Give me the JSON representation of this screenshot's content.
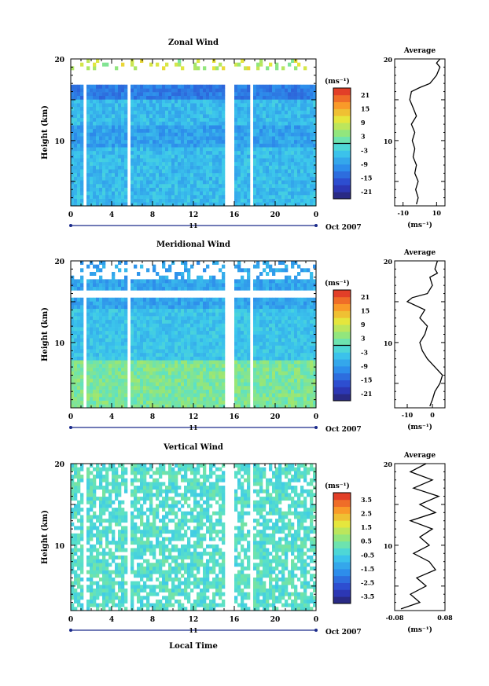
{
  "figure": {
    "x_ticks": [
      "0",
      "4",
      "8",
      "12",
      "16",
      "20",
      "0"
    ],
    "day_label": "11",
    "month_label": "Oct 2007",
    "x_axis_label": "Local Time",
    "y_axis_label": "Height (km)",
    "y_ticks": [
      "10",
      "20"
    ],
    "unit_label": "(ms⁻¹)",
    "average_title": "Average"
  },
  "chart_data": [
    {
      "type": "heatmap",
      "title": "Zonal Wind",
      "xlabel": "",
      "ylabel": "Height (km)",
      "xlim": [
        0,
        24
      ],
      "ylim": [
        2,
        20
      ],
      "colorbar": {
        "unit": "(ms⁻¹)",
        "ticks": [
          "21",
          "15",
          "9",
          "3",
          "-3",
          "-9",
          "-15",
          "-21"
        ],
        "range": [
          -24,
          24
        ]
      },
      "profile": {
        "title": "Average",
        "xlabel": "(ms⁻¹)",
        "x_ticks": [
          "-10",
          "10"
        ],
        "xlim": [
          -15,
          15
        ],
        "points": [
          [
            -2,
            2.2
          ],
          [
            -1,
            3
          ],
          [
            -2.5,
            4
          ],
          [
            -1,
            5
          ],
          [
            -3,
            6
          ],
          [
            -2,
            7
          ],
          [
            -4,
            8
          ],
          [
            -3,
            9
          ],
          [
            -4.5,
            10
          ],
          [
            -3,
            11
          ],
          [
            -5,
            12
          ],
          [
            -2,
            13
          ],
          [
            -4,
            14
          ],
          [
            -6,
            15
          ],
          [
            -5,
            16
          ],
          [
            0,
            16.5
          ],
          [
            6,
            17
          ],
          [
            8,
            17.5
          ],
          [
            10,
            18
          ],
          [
            12,
            19
          ],
          [
            10,
            19.5
          ],
          [
            12,
            20
          ]
        ]
      }
    },
    {
      "type": "heatmap",
      "title": "Meridional Wind",
      "xlabel": "",
      "ylabel": "Height (km)",
      "xlim": [
        0,
        24
      ],
      "ylim": [
        2,
        20
      ],
      "colorbar": {
        "unit": "(ms⁻¹)",
        "ticks": [
          "21",
          "15",
          "9",
          "3",
          "-3",
          "-9",
          "-15",
          "-21"
        ],
        "range": [
          -24,
          24
        ]
      },
      "profile": {
        "title": "Average",
        "xlabel": "(ms⁻¹)",
        "x_ticks": [
          "-10",
          "0"
        ],
        "xlim": [
          -15,
          5
        ],
        "points": [
          [
            -1,
            2.2
          ],
          [
            0,
            3
          ],
          [
            1,
            4
          ],
          [
            3,
            5
          ],
          [
            4,
            6
          ],
          [
            1,
            7
          ],
          [
            -2,
            8
          ],
          [
            -4,
            9
          ],
          [
            -5,
            10
          ],
          [
            -3,
            11
          ],
          [
            -2,
            12
          ],
          [
            -5,
            13
          ],
          [
            -3,
            14
          ],
          [
            -10,
            15
          ],
          [
            -8,
            15.5
          ],
          [
            -2,
            16
          ],
          [
            0,
            17
          ],
          [
            -1,
            18
          ],
          [
            2,
            18.5
          ],
          [
            1,
            19
          ],
          [
            2,
            20
          ]
        ]
      }
    },
    {
      "type": "heatmap",
      "title": "Vertical Wind",
      "xlabel": "Local Time",
      "ylabel": "Height (km)",
      "xlim": [
        0,
        24
      ],
      "ylim": [
        2,
        20
      ],
      "colorbar": {
        "unit": "(ms⁻¹)",
        "ticks": [
          "3.5",
          "2.5",
          "1.5",
          "0.5",
          "-0.5",
          "-1.5",
          "-2.5",
          "-3.5"
        ],
        "range": [
          -4,
          4
        ]
      },
      "profile": {
        "title": "Average",
        "xlabel": "(ms⁻¹)",
        "x_ticks": [
          "-0.08",
          "0.08"
        ],
        "xlim": [
          -0.08,
          0.08
        ],
        "points": [
          [
            -0.06,
            2.2
          ],
          [
            0.0,
            3
          ],
          [
            -0.03,
            4
          ],
          [
            0.02,
            5
          ],
          [
            -0.01,
            6
          ],
          [
            0.05,
            7
          ],
          [
            0.03,
            8
          ],
          [
            -0.02,
            9
          ],
          [
            0.03,
            10
          ],
          [
            0.0,
            11
          ],
          [
            0.04,
            12
          ],
          [
            -0.03,
            13
          ],
          [
            0.05,
            14
          ],
          [
            0.0,
            15
          ],
          [
            0.06,
            16
          ],
          [
            -0.02,
            17
          ],
          [
            0.04,
            18
          ],
          [
            -0.03,
            19
          ],
          [
            0.02,
            20
          ]
        ]
      }
    }
  ]
}
